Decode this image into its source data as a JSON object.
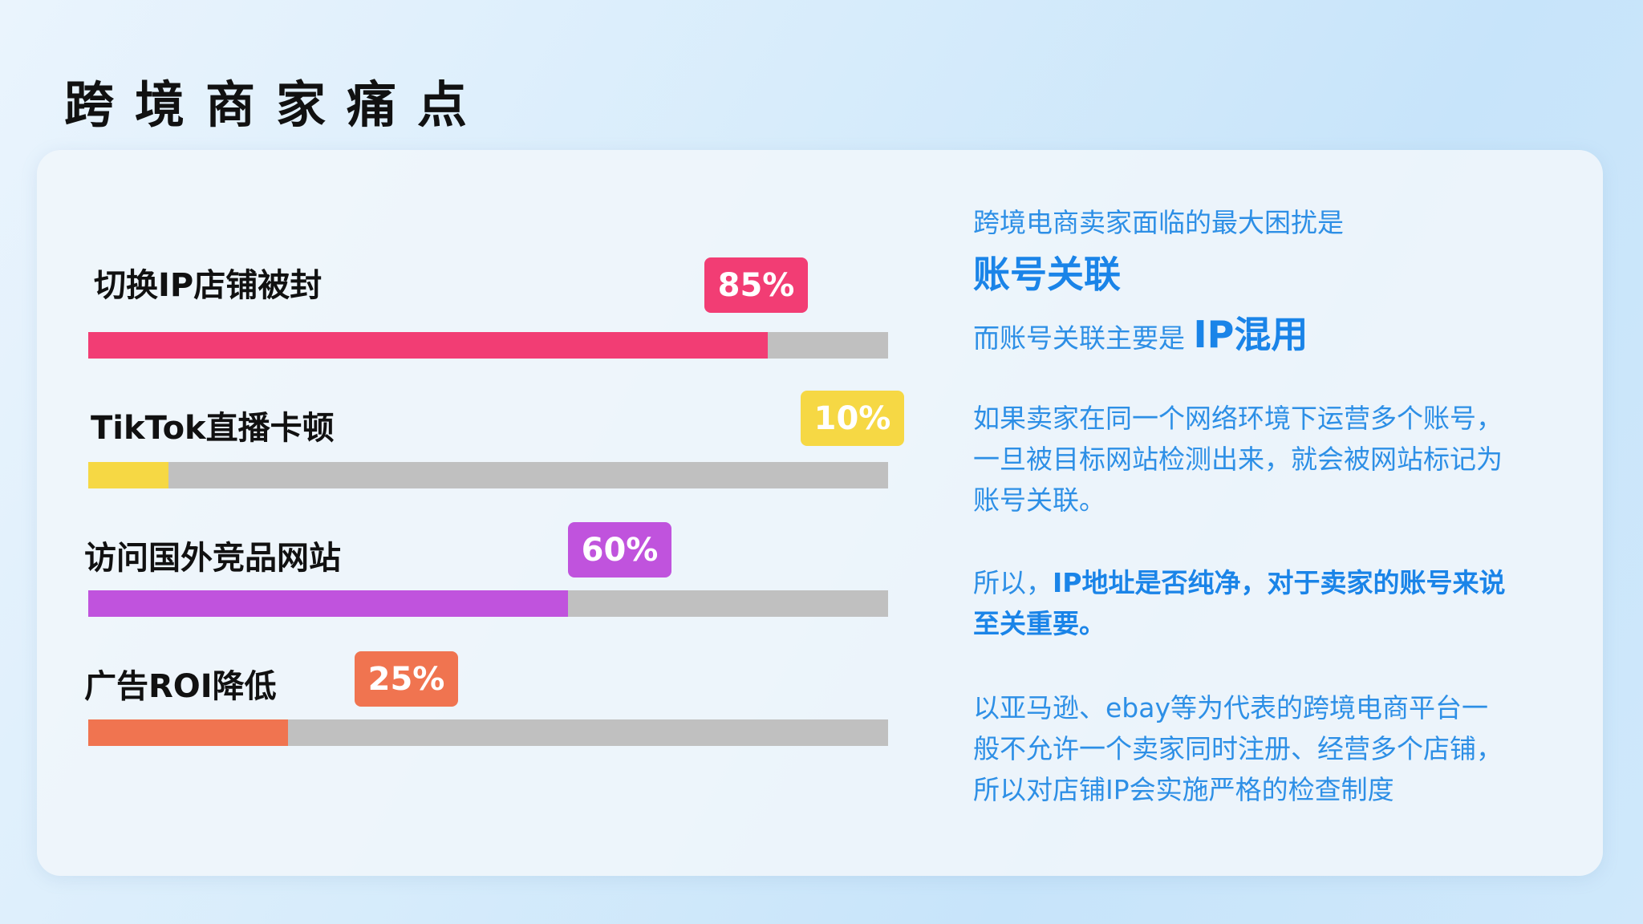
{
  "title": "跨境商家痛点",
  "colors": {
    "track": "#c0c0c0",
    "text_blue": "#2d8fe6"
  },
  "bars": [
    {
      "label": "切换IP店铺被封",
      "percent_label": "85%",
      "value": 85,
      "color": "#f23d74"
    },
    {
      "label": "TikTok直播卡顿",
      "percent_label": "10%",
      "value": 10,
      "color": "#f6d844"
    },
    {
      "label": "访问国外竞品网站",
      "percent_label": "60%",
      "value": 60,
      "color": "#c053dd"
    },
    {
      "label": "广告ROI降低",
      "percent_label": "25%",
      "value": 25,
      "color": "#f07450"
    }
  ],
  "right": {
    "line1": "跨境电商卖家面临的最大困扰是",
    "line2": "账号关联",
    "line3_prefix": "而账号关联主要是 ",
    "line3_bold": "IP混用",
    "para1": [
      "如果卖家在同一个网络环境下运营多个账号，",
      "一旦被目标网站检测出来，就会被网站标记为",
      "账号关联。"
    ],
    "para2_prefix": "所以，",
    "para2_bold1": "IP地址是否纯净，对于卖家的账号来说",
    "para2_bold2": "至关重要。",
    "para3": [
      "以亚马逊、ebay等为代表的跨境电商平台一",
      "般不允许一个卖家同时注册、经营多个店铺，",
      "所以对店铺IP会实施严格的检查制度"
    ]
  }
}
